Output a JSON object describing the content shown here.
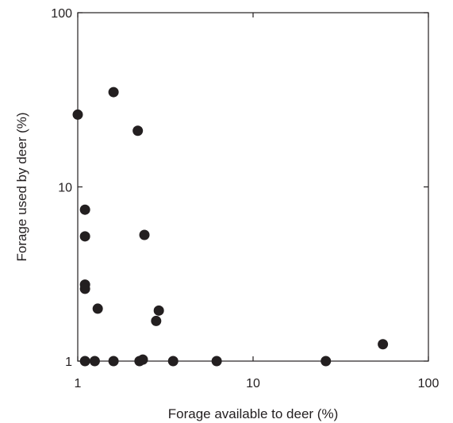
{
  "chart_data": {
    "type": "scatter",
    "title": "",
    "xlabel": "Forage available to deer (%)",
    "ylabel": "Forage used by deer (%)",
    "xscale": "log",
    "yscale": "log",
    "xlim": [
      1,
      100
    ],
    "ylim": [
      1,
      100
    ],
    "xticks": [
      1,
      10,
      100
    ],
    "yticks": [
      1,
      10,
      100
    ],
    "xtick_labels": [
      "1",
      "10",
      "100"
    ],
    "ytick_labels": [
      "1",
      "10",
      "100"
    ],
    "grid": false,
    "legend": "none",
    "marker_color": "#231f20",
    "series": [
      {
        "x": [
          1.0,
          1.6,
          2.2,
          1.1,
          1.1,
          2.4,
          1.1,
          1.1,
          1.3,
          2.9,
          2.8,
          55,
          1.1,
          1.25,
          1.6,
          2.25,
          2.35,
          3.5,
          6.2,
          26
        ],
        "y": [
          26,
          35,
          21,
          7.4,
          5.2,
          5.3,
          2.75,
          2.6,
          2.0,
          1.95,
          1.7,
          1.25,
          1.0,
          1.0,
          1.0,
          1.0,
          1.02,
          1.0,
          1.0,
          1.0
        ]
      }
    ]
  }
}
